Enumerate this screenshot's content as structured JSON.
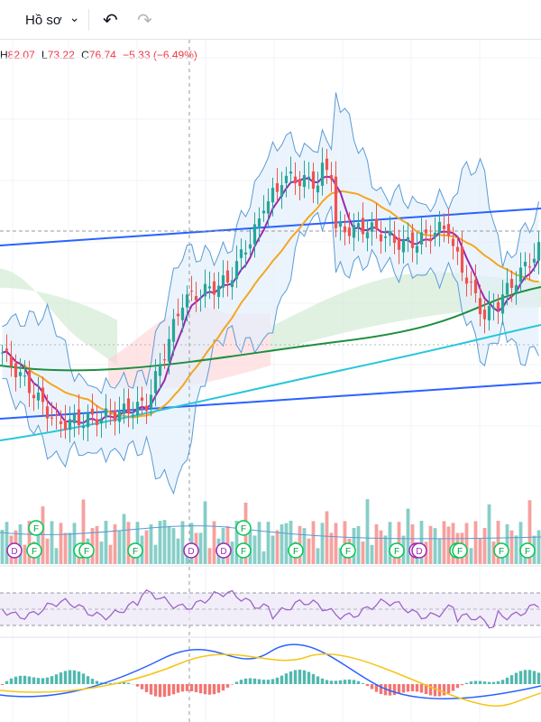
{
  "toolbar": {
    "menu_label": "Hồ sơ",
    "menu_chevron": "⌄",
    "undo_icon": "↶",
    "redo_icon": "↷"
  },
  "ohlc": {
    "h_key": "H",
    "h_val": "82.07",
    "l_key": "L",
    "l_val": "73.22",
    "c_key": "C",
    "c_val": "76.74",
    "change": "−5.33 (−6.49%)"
  },
  "colors": {
    "up": "#26a69a",
    "down": "#ef5350",
    "bb_band": "#5b9bd5",
    "bb_fill": "#e3f0fb",
    "ma_fast": "#9c27b0",
    "ma_mid": "#f5a623",
    "ma_slow": "#1e8e3e",
    "ma_long": "#26c6da",
    "channel": "#2962ff",
    "rsi": "#9c64c9",
    "macd": "#2962ff",
    "signal": "#f5c518"
  },
  "chart_data": {
    "type": "line",
    "note_units": "price",
    "price_range": [
      44,
      108
    ],
    "series": [],
    "markers": [
      {
        "kind": "D",
        "label": "D"
      },
      {
        "kind": "F",
        "label": "F"
      },
      {
        "kind": "F",
        "label": "F"
      },
      {
        "kind": "F",
        "label": "F"
      },
      {
        "kind": "F",
        "label": "F"
      },
      {
        "kind": "F",
        "label": "F"
      },
      {
        "kind": "D",
        "label": "D"
      },
      {
        "kind": "D",
        "label": "D"
      },
      {
        "kind": "F",
        "label": "F"
      },
      {
        "kind": "F",
        "label": "F"
      },
      {
        "kind": "F",
        "label": "F"
      },
      {
        "kind": "F",
        "label": "F"
      },
      {
        "kind": "F",
        "label": "F"
      },
      {
        "kind": "D",
        "label": "D"
      },
      {
        "kind": "D",
        "label": "D"
      },
      {
        "kind": "F",
        "label": "F"
      },
      {
        "kind": "F",
        "label": "F"
      },
      {
        "kind": "F",
        "label": "F"
      },
      {
        "kind": "F",
        "label": "F"
      }
    ]
  }
}
